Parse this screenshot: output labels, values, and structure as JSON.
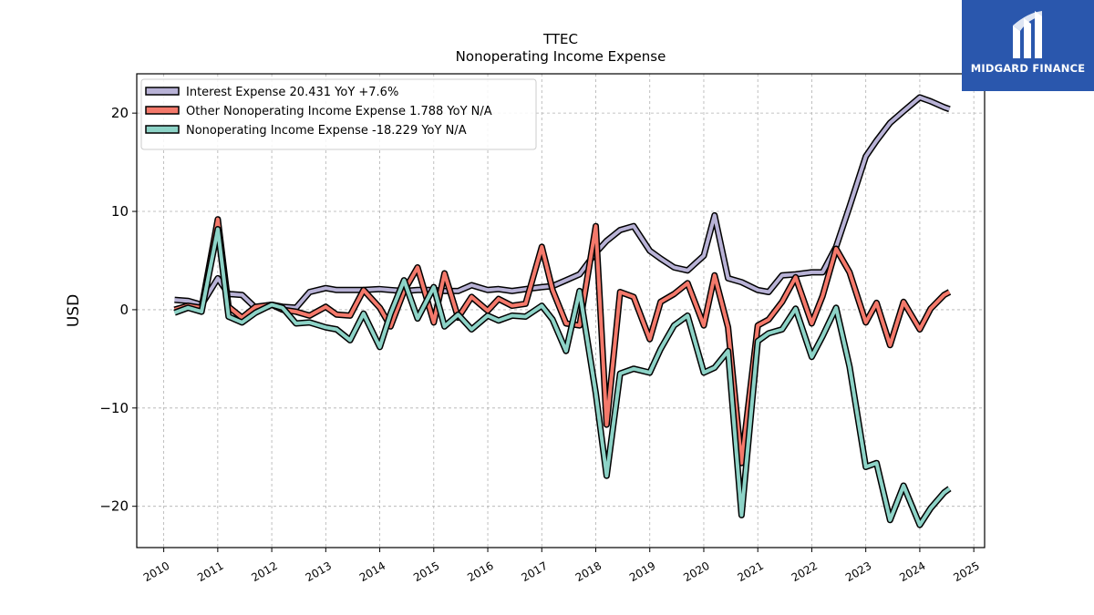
{
  "chart_data": {
    "type": "line",
    "title": "TTEC",
    "subtitle": "Nonoperating Income Expense",
    "ylabel": "USD",
    "xlabel": "",
    "xlim": [
      2009.5,
      2025.2
    ],
    "ylim": [
      -24.2,
      24.0
    ],
    "x_ticks": [
      2010,
      2011,
      2012,
      2013,
      2014,
      2015,
      2016,
      2017,
      2018,
      2019,
      2020,
      2021,
      2022,
      2023,
      2024,
      2025
    ],
    "y_ticks": [
      -20,
      -10,
      0,
      10,
      20
    ],
    "grid": true,
    "legend_position": "upper-left",
    "series": [
      {
        "name": "Interest Expense  20.431 YoY +7.6%",
        "color": "#b8b2d6",
        "x": [
          2010.2,
          2010.45,
          2010.7,
          2011.0,
          2011.2,
          2011.45,
          2011.7,
          2012.0,
          2012.2,
          2012.45,
          2012.7,
          2013.0,
          2013.2,
          2013.45,
          2013.7,
          2014.0,
          2014.2,
          2014.45,
          2014.7,
          2015.0,
          2015.2,
          2015.45,
          2015.7,
          2016.0,
          2016.2,
          2016.45,
          2016.7,
          2017.0,
          2017.2,
          2017.45,
          2017.7,
          2018.0,
          2018.2,
          2018.45,
          2018.7,
          2019.0,
          2019.2,
          2019.45,
          2019.7,
          2020.0,
          2020.2,
          2020.45,
          2020.7,
          2021.0,
          2021.2,
          2021.45,
          2021.7,
          2022.0,
          2022.2,
          2022.45,
          2022.7,
          2023.0,
          2023.2,
          2023.45,
          2023.7,
          2024.0,
          2024.2,
          2024.45,
          2024.55
        ],
        "values": [
          1.0,
          0.9,
          0.5,
          3.2,
          1.6,
          1.5,
          0.2,
          0.5,
          0.3,
          0.2,
          1.8,
          2.2,
          2.0,
          2.0,
          2.0,
          2.1,
          2.0,
          1.9,
          2.0,
          2.0,
          1.9,
          1.9,
          2.5,
          2.0,
          2.1,
          1.9,
          2.1,
          2.3,
          2.4,
          3.0,
          3.6,
          5.8,
          7.0,
          8.1,
          8.5,
          6.0,
          5.2,
          4.3,
          4.0,
          5.5,
          9.6,
          3.2,
          2.8,
          2.0,
          1.8,
          3.5,
          3.6,
          3.8,
          3.8,
          6.4,
          10.5,
          15.6,
          17.2,
          19.0,
          20.2,
          21.6,
          21.2,
          20.6,
          20.4
        ]
      },
      {
        "name": "Other Nonoperating Income Expense  1.788 YoY N/A",
        "color": "#f4796b",
        "x": [
          2010.2,
          2010.45,
          2010.7,
          2011.0,
          2011.2,
          2011.45,
          2011.7,
          2012.0,
          2012.2,
          2012.45,
          2012.7,
          2013.0,
          2013.2,
          2013.45,
          2013.7,
          2014.0,
          2014.2,
          2014.45,
          2014.7,
          2015.0,
          2015.2,
          2015.45,
          2015.7,
          2016.0,
          2016.2,
          2016.45,
          2016.7,
          2017.0,
          2017.2,
          2017.45,
          2017.7,
          2018.0,
          2018.2,
          2018.45,
          2018.7,
          2019.0,
          2019.2,
          2019.45,
          2019.7,
          2020.0,
          2020.2,
          2020.45,
          2020.7,
          2021.0,
          2021.2,
          2021.45,
          2021.7,
          2022.0,
          2022.2,
          2022.45,
          2022.7,
          2023.0,
          2023.2,
          2023.45,
          2023.7,
          2024.0,
          2024.2,
          2024.45,
          2024.55
        ],
        "values": [
          0.0,
          0.4,
          0.2,
          9.2,
          0.3,
          -0.8,
          0.3,
          0.5,
          0.0,
          -0.2,
          -0.6,
          0.3,
          -0.5,
          -0.6,
          2.0,
          0.2,
          -1.7,
          1.9,
          4.3,
          -1.3,
          3.7,
          -0.8,
          1.3,
          -0.1,
          1.1,
          0.4,
          0.6,
          6.4,
          2.0,
          -1.4,
          -1.6,
          8.5,
          -11.7,
          1.8,
          1.3,
          -3.0,
          0.8,
          1.6,
          2.7,
          -1.6,
          3.5,
          -1.8,
          -15.6,
          -1.6,
          -1.0,
          0.8,
          3.3,
          -1.4,
          1.4,
          6.2,
          3.8,
          -1.3,
          0.7,
          -3.6,
          0.8,
          -2.0,
          0.1,
          1.5,
          1.8
        ]
      },
      {
        "name": "Nonoperating Income Expense  -18.229 YoY N/A",
        "color": "#8dd3c7",
        "x": [
          2010.2,
          2010.45,
          2010.7,
          2011.0,
          2011.2,
          2011.45,
          2011.7,
          2012.0,
          2012.2,
          2012.45,
          2012.7,
          2013.0,
          2013.2,
          2013.45,
          2013.7,
          2014.0,
          2014.2,
          2014.45,
          2014.7,
          2015.0,
          2015.2,
          2015.45,
          2015.7,
          2016.0,
          2016.2,
          2016.45,
          2016.7,
          2017.0,
          2017.2,
          2017.45,
          2017.7,
          2018.0,
          2018.2,
          2018.45,
          2018.7,
          2019.0,
          2019.2,
          2019.45,
          2019.7,
          2020.0,
          2020.2,
          2020.45,
          2020.7,
          2021.0,
          2021.2,
          2021.45,
          2021.7,
          2022.0,
          2022.2,
          2022.45,
          2022.7,
          2023.0,
          2023.2,
          2023.45,
          2023.7,
          2024.0,
          2024.2,
          2024.45,
          2024.55
        ],
        "values": [
          -0.3,
          0.2,
          -0.2,
          8.2,
          -0.7,
          -1.3,
          -0.3,
          0.5,
          0.2,
          -1.4,
          -1.3,
          -1.8,
          -2.0,
          -3.1,
          -0.4,
          -3.8,
          -0.4,
          3.0,
          -0.9,
          2.3,
          -1.7,
          -0.5,
          -2.0,
          -0.6,
          -1.1,
          -0.6,
          -0.7,
          0.4,
          -1.0,
          -4.2,
          1.9,
          -8.5,
          -16.9,
          -6.5,
          -6.0,
          -6.4,
          -4.0,
          -1.6,
          -0.6,
          -6.4,
          -5.9,
          -4.2,
          -20.9,
          -3.2,
          -2.4,
          -2.0,
          0.1,
          -4.8,
          -2.7,
          0.2,
          -5.8,
          -16.0,
          -15.6,
          -21.4,
          -17.9,
          -21.9,
          -20.2,
          -18.6,
          -18.2
        ]
      }
    ]
  },
  "logo": {
    "text": "MIDGARD FINANCE",
    "background": "#2a57ad"
  }
}
